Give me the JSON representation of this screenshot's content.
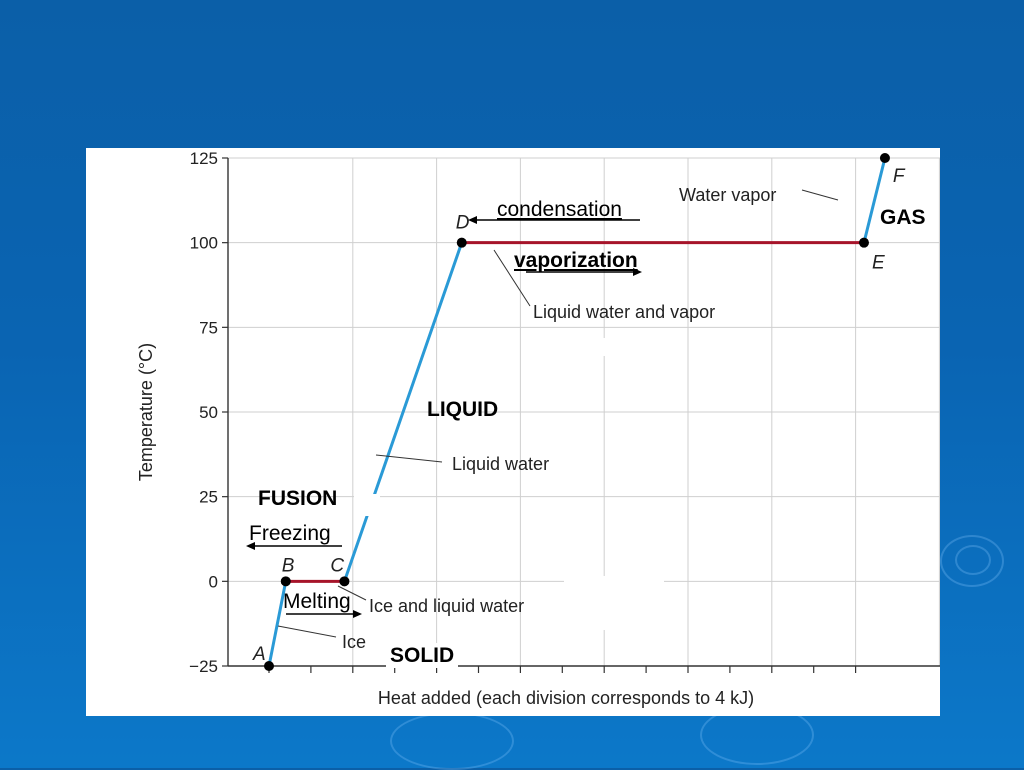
{
  "chart_data": {
    "type": "line",
    "xlabel": "Heat added (each division corresponds to 4 kJ)",
    "ylabel": "Temperature (°C)",
    "ylim": [
      -25,
      125
    ],
    "yticks": [
      "125",
      "100",
      "75",
      "50",
      "25",
      "0",
      "−25"
    ],
    "grid": true,
    "series": [
      {
        "values": [
          {
            "point": "A",
            "x": 0.0,
            "y": -25
          },
          {
            "point": "B",
            "x": 0.4,
            "y": 0
          },
          {
            "point": "C",
            "x": 1.8,
            "y": 0
          },
          {
            "point": "D",
            "x": 4.6,
            "y": 100
          },
          {
            "point": "E",
            "x": 14.2,
            "y": 100
          },
          {
            "point": "F",
            "x": 14.7,
            "y": 125
          }
        ]
      }
    ],
    "annotations": [
      "Water vapor",
      "Liquid water and vapor",
      "Liquid water",
      "Ice and liquid water",
      "Ice"
    ],
    "segment_colors": {
      "sloped": "#2a9ad6",
      "flat": "#a6142a"
    }
  },
  "overlays": {
    "condensation": "condensation",
    "vaporization": "vaporization",
    "gas": "GAS",
    "liquid": "LIQUID",
    "fusion": "FUSION",
    "freezing": "Freezing",
    "melting": "Melting",
    "solid": "SOLID"
  }
}
